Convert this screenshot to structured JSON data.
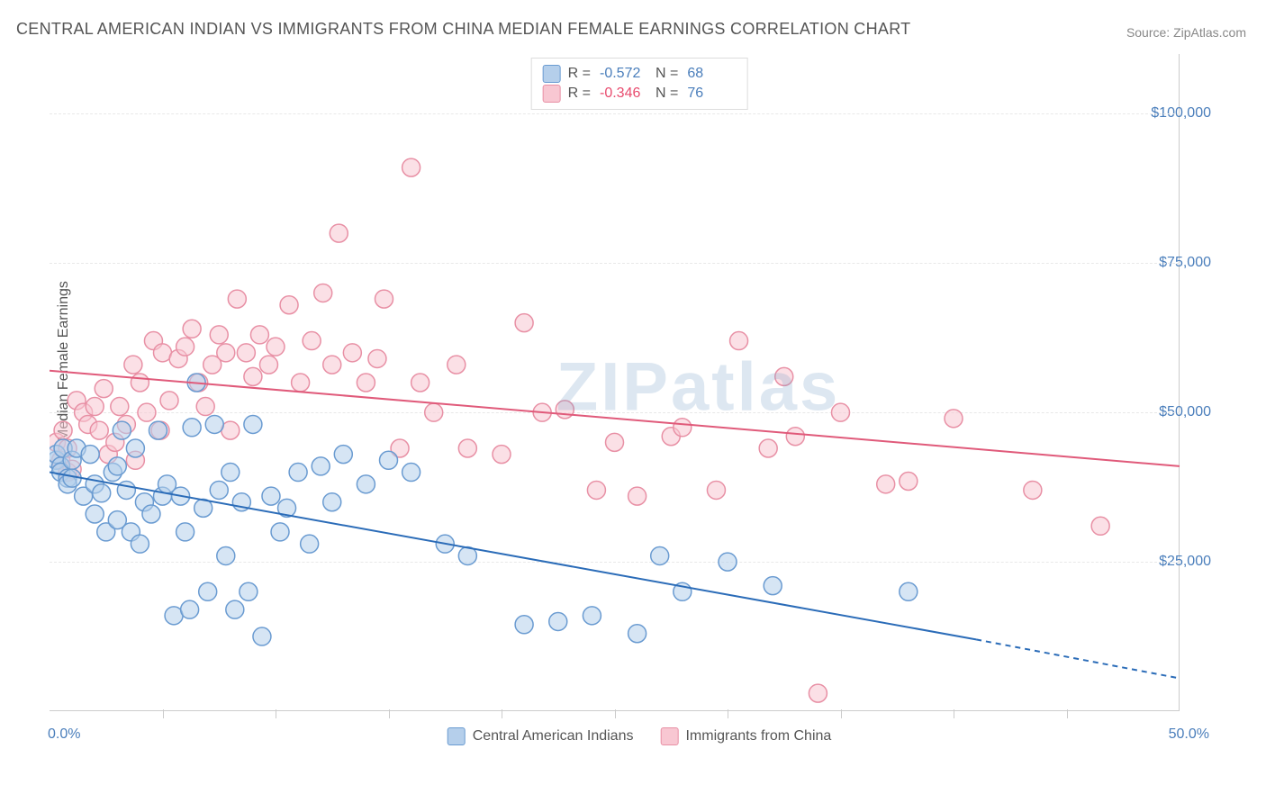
{
  "title": "CENTRAL AMERICAN INDIAN VS IMMIGRANTS FROM CHINA MEDIAN FEMALE EARNINGS CORRELATION CHART",
  "source": "Source: ZipAtlas.com",
  "watermark": "ZIPatlas",
  "ylabel": "Median Female Earnings",
  "chart": {
    "type": "scatter",
    "xlim": [
      0,
      50
    ],
    "ylim": [
      0,
      110000
    ],
    "x_unit": "%",
    "y_unit": "$",
    "background_color": "#ffffff",
    "grid_color": "#e8e8e8",
    "yticks": [
      {
        "value": 25000,
        "label": "$25,000"
      },
      {
        "value": 50000,
        "label": "$50,000"
      },
      {
        "value": 75000,
        "label": "$75,000"
      },
      {
        "value": 100000,
        "label": "$100,000"
      }
    ],
    "xticks_labels": [
      {
        "value": 0,
        "label": "0.0%"
      },
      {
        "value": 50,
        "label": "50.0%"
      }
    ],
    "xticks_marks": [
      5,
      10,
      15,
      20,
      25,
      30,
      35,
      40,
      45
    ],
    "marker_radius": 10,
    "marker_stroke_width": 1.5,
    "trend_line_width": 2,
    "series": [
      {
        "name": "Central American Indians",
        "fill_color": "#b5cfeb",
        "stroke_color": "#6a9bd1",
        "trend_color": "#2b6cb8",
        "fill_opacity": 0.55,
        "R": "-0.572",
        "N": "68",
        "trend": {
          "x1": 0,
          "y1": 40000,
          "x2": 41,
          "y2": 12000,
          "dash_x2": 50,
          "dash_y2": 5500
        },
        "points": [
          [
            0.3,
            42000
          ],
          [
            0.3,
            43000
          ],
          [
            0.5,
            41000
          ],
          [
            0.5,
            40000
          ],
          [
            0.6,
            44000
          ],
          [
            0.8,
            39000
          ],
          [
            0.8,
            38000
          ],
          [
            1.0,
            42000
          ],
          [
            1.0,
            39000
          ],
          [
            1.2,
            44000
          ],
          [
            1.5,
            36000
          ],
          [
            1.8,
            43000
          ],
          [
            2.0,
            33000
          ],
          [
            2.0,
            38000
          ],
          [
            2.3,
            36500
          ],
          [
            2.5,
            30000
          ],
          [
            2.8,
            40000
          ],
          [
            3.0,
            41000
          ],
          [
            3.0,
            32000
          ],
          [
            3.2,
            47000
          ],
          [
            3.4,
            37000
          ],
          [
            3.6,
            30000
          ],
          [
            3.8,
            44000
          ],
          [
            4.0,
            28000
          ],
          [
            4.2,
            35000
          ],
          [
            4.5,
            33000
          ],
          [
            4.8,
            47000
          ],
          [
            5.0,
            36000
          ],
          [
            5.2,
            38000
          ],
          [
            5.5,
            16000
          ],
          [
            5.8,
            36000
          ],
          [
            6.0,
            30000
          ],
          [
            6.2,
            17000
          ],
          [
            6.3,
            47500
          ],
          [
            6.5,
            55000
          ],
          [
            6.8,
            34000
          ],
          [
            7.0,
            20000
          ],
          [
            7.3,
            48000
          ],
          [
            7.5,
            37000
          ],
          [
            7.8,
            26000
          ],
          [
            8.0,
            40000
          ],
          [
            8.2,
            17000
          ],
          [
            8.5,
            35000
          ],
          [
            8.8,
            20000
          ],
          [
            9.0,
            48000
          ],
          [
            9.4,
            12500
          ],
          [
            9.8,
            36000
          ],
          [
            10.2,
            30000
          ],
          [
            10.5,
            34000
          ],
          [
            11.0,
            40000
          ],
          [
            11.5,
            28000
          ],
          [
            12.0,
            41000
          ],
          [
            12.5,
            35000
          ],
          [
            13.0,
            43000
          ],
          [
            14.0,
            38000
          ],
          [
            15.0,
            42000
          ],
          [
            16.0,
            40000
          ],
          [
            17.5,
            28000
          ],
          [
            18.5,
            26000
          ],
          [
            21.0,
            14500
          ],
          [
            22.5,
            15000
          ],
          [
            24.0,
            16000
          ],
          [
            26.0,
            13000
          ],
          [
            27.0,
            26000
          ],
          [
            28.0,
            20000
          ],
          [
            30.0,
            25000
          ],
          [
            32.0,
            21000
          ],
          [
            38.0,
            20000
          ]
        ]
      },
      {
        "name": "Immigrants from China",
        "fill_color": "#f8c7d2",
        "stroke_color": "#e890a5",
        "trend_color": "#e05a7a",
        "fill_opacity": 0.55,
        "R": "-0.346",
        "N": "76",
        "trend": {
          "x1": 0,
          "y1": 57000,
          "x2": 50,
          "y2": 41000
        },
        "points": [
          [
            0.3,
            45000
          ],
          [
            0.5,
            42000
          ],
          [
            0.6,
            47000
          ],
          [
            0.8,
            44000
          ],
          [
            0.8,
            40000
          ],
          [
            1.0,
            40500
          ],
          [
            1.2,
            52000
          ],
          [
            1.5,
            50000
          ],
          [
            1.7,
            48000
          ],
          [
            2.0,
            51000
          ],
          [
            2.2,
            47000
          ],
          [
            2.4,
            54000
          ],
          [
            2.6,
            43000
          ],
          [
            2.9,
            45000
          ],
          [
            3.1,
            51000
          ],
          [
            3.4,
            48000
          ],
          [
            3.7,
            58000
          ],
          [
            3.8,
            42000
          ],
          [
            4.0,
            55000
          ],
          [
            4.3,
            50000
          ],
          [
            4.6,
            62000
          ],
          [
            4.9,
            47000
          ],
          [
            5.0,
            60000
          ],
          [
            5.3,
            52000
          ],
          [
            5.7,
            59000
          ],
          [
            6.0,
            61000
          ],
          [
            6.3,
            64000
          ],
          [
            6.6,
            55000
          ],
          [
            6.9,
            51000
          ],
          [
            7.2,
            58000
          ],
          [
            7.5,
            63000
          ],
          [
            7.8,
            60000
          ],
          [
            8.0,
            47000
          ],
          [
            8.3,
            69000
          ],
          [
            8.7,
            60000
          ],
          [
            9.0,
            56000
          ],
          [
            9.3,
            63000
          ],
          [
            9.7,
            58000
          ],
          [
            10.0,
            61000
          ],
          [
            10.6,
            68000
          ],
          [
            11.1,
            55000
          ],
          [
            11.6,
            62000
          ],
          [
            12.1,
            70000
          ],
          [
            12.5,
            58000
          ],
          [
            12.8,
            80000
          ],
          [
            13.4,
            60000
          ],
          [
            14.0,
            55000
          ],
          [
            14.5,
            59000
          ],
          [
            14.8,
            69000
          ],
          [
            15.5,
            44000
          ],
          [
            16.0,
            91000
          ],
          [
            16.4,
            55000
          ],
          [
            17.0,
            50000
          ],
          [
            18.0,
            58000
          ],
          [
            18.5,
            44000
          ],
          [
            20.0,
            43000
          ],
          [
            21.0,
            65000
          ],
          [
            21.8,
            50000
          ],
          [
            22.8,
            50500
          ],
          [
            25.0,
            45000
          ],
          [
            26.0,
            36000
          ],
          [
            27.5,
            46000
          ],
          [
            28.0,
            47500
          ],
          [
            29.5,
            37000
          ],
          [
            30.5,
            62000
          ],
          [
            31.8,
            44000
          ],
          [
            33.0,
            46000
          ],
          [
            34.0,
            3000
          ],
          [
            35.0,
            50000
          ],
          [
            37.0,
            38000
          ],
          [
            38.0,
            38500
          ],
          [
            40.0,
            49000
          ],
          [
            43.5,
            37000
          ],
          [
            46.5,
            31000
          ],
          [
            32.5,
            56000
          ],
          [
            24.2,
            37000
          ]
        ]
      }
    ]
  }
}
